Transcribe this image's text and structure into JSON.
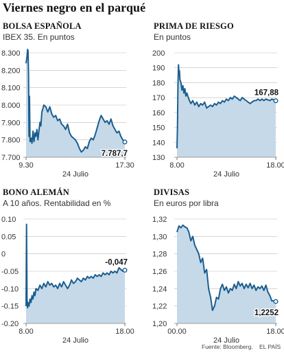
{
  "title": "Viernes negro en el parqué",
  "footer": {
    "source": "Fuente: Bloomberg.",
    "publisher": "EL PAÍS"
  },
  "colors": {
    "line": "#1a5d8f",
    "area": "#c6d9e8",
    "grid": "#bbbbbb"
  },
  "chart_data": [
    {
      "type": "area",
      "title": "BOLSA ESPAÑOLA",
      "subtitle": "IBEX 35. En puntos",
      "ylim": [
        7700,
        8300
      ],
      "yticks": [
        "8.300",
        "8.200",
        "8.100",
        "8.000",
        "7.900",
        "7.800",
        "7.700"
      ],
      "ytick_values": [
        8300,
        8200,
        8100,
        8000,
        7900,
        7800,
        7700
      ],
      "xlim": [
        0,
        100
      ],
      "xticks": [
        "9.30",
        "17.30"
      ],
      "xtick_values": [
        0,
        100
      ],
      "xlabel": "24 Julio",
      "x": [
        0,
        1,
        1.5,
        2,
        2.5,
        3,
        3.5,
        4,
        5,
        6,
        7,
        8,
        9,
        10,
        11,
        12,
        13,
        14,
        15,
        16,
        17,
        18,
        20,
        22,
        24,
        26,
        28,
        30,
        32,
        34,
        36,
        38,
        40,
        42,
        44,
        46,
        48,
        50,
        52,
        54,
        56,
        58,
        60,
        62,
        64,
        66,
        68,
        70,
        72,
        74,
        76,
        78,
        80,
        82,
        84,
        86,
        88,
        90,
        92,
        94,
        96,
        98,
        100
      ],
      "y": [
        8240,
        8280,
        8320,
        8310,
        8180,
        7820,
        8050,
        7790,
        7810,
        7780,
        7850,
        7790,
        7840,
        7820,
        7860,
        7800,
        7850,
        7900,
        7880,
        7960,
        7980,
        8000,
        7990,
        7960,
        7990,
        7950,
        7930,
        7940,
        7910,
        7920,
        7890,
        7880,
        7860,
        7890,
        7840,
        7820,
        7810,
        7800,
        7780,
        7750,
        7730,
        7740,
        7760,
        7750,
        7790,
        7810,
        7800,
        7830,
        7870,
        7910,
        7940,
        7920,
        7900,
        7910,
        7890,
        7920,
        7880,
        7860,
        7840,
        7850,
        7820,
        7800,
        7787.7
      ],
      "last_label": "7.787,7"
    },
    {
      "type": "area",
      "title": "PRIMA DE RIESGO",
      "subtitle": "En puntos",
      "ylim": [
        130,
        200
      ],
      "yticks": [
        "200",
        "190",
        "180",
        "170",
        "160",
        "150",
        "140",
        "130"
      ],
      "ytick_values": [
        200,
        190,
        180,
        170,
        160,
        150,
        140,
        130
      ],
      "xlim": [
        0,
        100
      ],
      "xticks": [
        "8.00",
        "18.00"
      ],
      "xtick_values": [
        0,
        100
      ],
      "xlabel": "24 Julio",
      "x": [
        0,
        0.5,
        1,
        1.5,
        2,
        2.5,
        3,
        4,
        5,
        6,
        7,
        8,
        9,
        10,
        12,
        14,
        16,
        18,
        20,
        22,
        24,
        26,
        28,
        30,
        32,
        34,
        36,
        38,
        40,
        42,
        44,
        46,
        48,
        50,
        52,
        54,
        56,
        58,
        60,
        62,
        64,
        66,
        68,
        70,
        72,
        74,
        76,
        78,
        80,
        82,
        84,
        86,
        88,
        90,
        92,
        94,
        96,
        98,
        100
      ],
      "y": [
        136,
        150,
        178,
        192,
        186,
        188,
        182,
        180,
        175,
        178,
        173,
        176,
        171,
        173,
        169,
        166,
        168,
        165,
        167,
        164,
        166,
        165,
        167,
        163,
        164,
        165,
        164,
        166,
        165,
        167,
        166,
        168,
        167,
        169,
        168,
        170,
        169,
        171,
        170,
        169,
        168,
        170,
        169,
        168,
        167,
        166,
        167,
        168,
        168,
        169,
        168,
        169,
        168,
        169,
        168.5,
        168,
        169,
        168.5,
        167.88
      ],
      "last_label": "167,88"
    },
    {
      "type": "area",
      "title": "BONO ALEMÁN",
      "subtitle": "A 10 años. Rentabilidad en %",
      "ylim": [
        -0.2,
        0.1
      ],
      "yticks": [
        "0.10",
        "0.05",
        "0",
        "-0.05",
        "-0.10",
        "-0.15",
        "-0.20"
      ],
      "ytick_values": [
        0.1,
        0.05,
        0,
        -0.05,
        -0.1,
        -0.15,
        -0.2
      ],
      "xlim": [
        0,
        100
      ],
      "xticks": [
        "8.00",
        "18.00"
      ],
      "xtick_values": [
        0,
        100
      ],
      "xlabel": "24 Julio",
      "x": [
        0,
        0.5,
        1,
        1.5,
        2,
        3,
        4,
        5,
        6,
        7,
        8,
        9,
        10,
        12,
        14,
        16,
        18,
        20,
        22,
        24,
        26,
        28,
        30,
        32,
        34,
        36,
        38,
        40,
        42,
        44,
        46,
        48,
        50,
        52,
        54,
        56,
        58,
        60,
        62,
        64,
        66,
        68,
        70,
        72,
        74,
        76,
        78,
        80,
        82,
        84,
        86,
        88,
        90,
        92,
        94,
        96,
        98,
        100
      ],
      "y": [
        -0.15,
        0.085,
        -0.13,
        -0.155,
        -0.14,
        -0.15,
        -0.13,
        -0.14,
        -0.12,
        -0.13,
        -0.11,
        -0.12,
        -0.1,
        -0.105,
        -0.09,
        -0.1,
        -0.085,
        -0.095,
        -0.08,
        -0.09,
        -0.085,
        -0.095,
        -0.09,
        -0.1,
        -0.085,
        -0.095,
        -0.08,
        -0.09,
        -0.1,
        -0.09,
        -0.075,
        -0.085,
        -0.08,
        -0.07,
        -0.075,
        -0.08,
        -0.07,
        -0.075,
        -0.065,
        -0.07,
        -0.065,
        -0.07,
        -0.06,
        -0.065,
        -0.06,
        -0.065,
        -0.055,
        -0.06,
        -0.055,
        -0.06,
        -0.05,
        -0.055,
        -0.05,
        -0.055,
        -0.04,
        -0.045,
        -0.05,
        -0.047
      ],
      "last_label": "-0,047"
    },
    {
      "type": "area",
      "title": "DIVISAS",
      "subtitle": "En euros por libra",
      "ylim": [
        1.2,
        1.32
      ],
      "yticks": [
        "1,32",
        "1,30",
        "1,28",
        "1,26",
        "1,24",
        "1,22",
        "1,20"
      ],
      "ytick_values": [
        1.32,
        1.3,
        1.28,
        1.26,
        1.24,
        1.22,
        1.2
      ],
      "xlim": [
        0,
        100
      ],
      "xticks": [
        "00.00",
        "18.00"
      ],
      "xtick_values": [
        0,
        100
      ],
      "xlabel": "24 Julio",
      "x": [
        0,
        2,
        4,
        6,
        8,
        10,
        12,
        14,
        16,
        18,
        20,
        22,
        24,
        26,
        28,
        30,
        32,
        34,
        36,
        38,
        40,
        42,
        44,
        46,
        48,
        50,
        52,
        54,
        56,
        58,
        60,
        62,
        64,
        66,
        68,
        70,
        72,
        74,
        76,
        78,
        80,
        82,
        84,
        86,
        88,
        90,
        92,
        94,
        96,
        98,
        100
      ],
      "y": [
        1.305,
        1.312,
        1.31,
        1.313,
        1.311,
        1.31,
        1.305,
        1.295,
        1.3,
        1.29,
        1.285,
        1.28,
        1.27,
        1.275,
        1.258,
        1.262,
        1.24,
        1.23,
        1.215,
        1.22,
        1.23,
        1.228,
        1.24,
        1.245,
        1.238,
        1.242,
        1.235,
        1.24,
        1.238,
        1.245,
        1.24,
        1.248,
        1.243,
        1.246,
        1.24,
        1.245,
        1.241,
        1.246,
        1.24,
        1.244,
        1.238,
        1.242,
        1.24,
        1.243,
        1.238,
        1.244,
        1.236,
        1.232,
        1.226,
        1.226,
        1.2252
      ],
      "last_label": "1,2252"
    }
  ]
}
